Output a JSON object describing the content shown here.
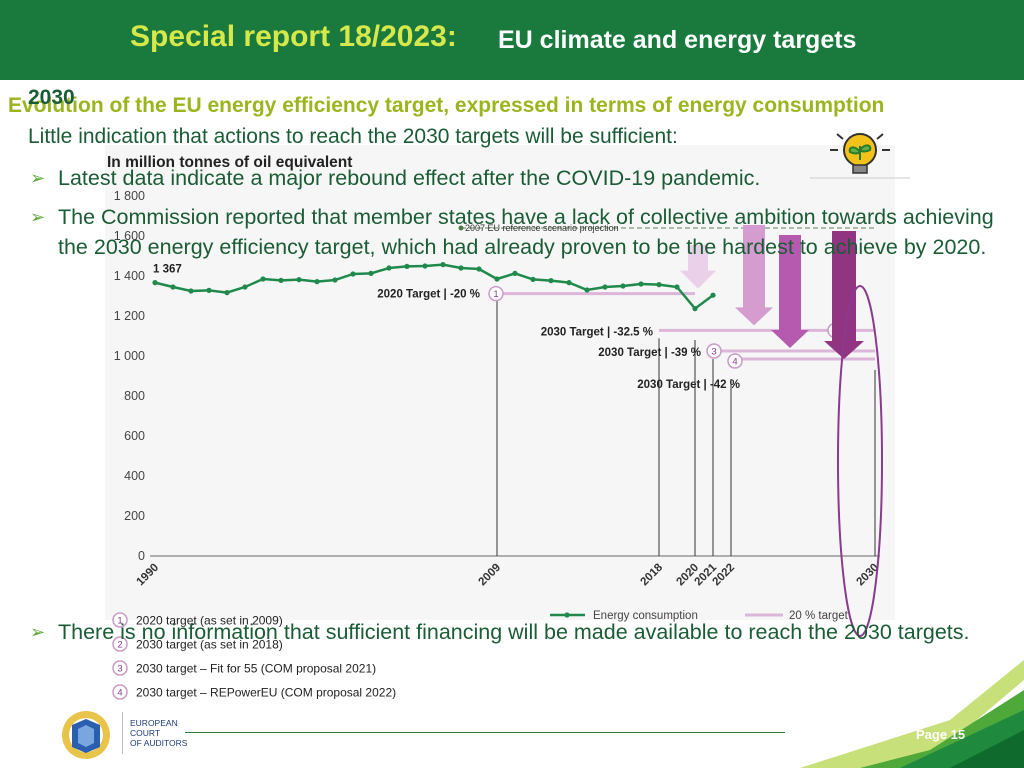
{
  "header": {
    "title_prefix": "Special report 18/2023:",
    "title_main": "EU climate and energy targets"
  },
  "subtitle": "Evolution of the EU energy efficiency target, expressed in terms of energy consumption",
  "year_overlay": "2030",
  "intro": "Little indication that actions to reach the 2030 targets will be sufficient:",
  "bullets": [
    "Latest data indicate a major rebound effect after the COVID-19 pandemic.",
    "The Commission reported that member states have a lack of collective ambition towards achieving the 2030 energy efficiency target, which had already proven to be the hardest to achieve by 2020.",
    "There is no information that sufficient financing will be made available to reach the 2030 targets."
  ],
  "chart_data": {
    "type": "line",
    "title": "In million tonnes of oil equivalent",
    "x": [
      1990,
      1991,
      1992,
      1993,
      1994,
      1995,
      1996,
      1997,
      1998,
      1999,
      2000,
      2001,
      2002,
      2003,
      2004,
      2005,
      2006,
      2007,
      2008,
      2009,
      2010,
      2011,
      2012,
      2013,
      2014,
      2015,
      2016,
      2017,
      2018,
      2019,
      2020,
      2021
    ],
    "series": [
      {
        "name": "Energy consumption",
        "values": [
          1367,
          1345,
          1325,
          1328,
          1317,
          1345,
          1385,
          1378,
          1382,
          1372,
          1380,
          1410,
          1413,
          1440,
          1448,
          1450,
          1457,
          1440,
          1435,
          1385,
          1413,
          1383,
          1377,
          1367,
          1330,
          1345,
          1350,
          1360,
          1357,
          1345,
          1237,
          1304
        ]
      }
    ],
    "first_value_label": "1 367",
    "reference_line": {
      "label": "2007 EU reference scenario projection",
      "from": 2007,
      "to": 2030,
      "start": 1640,
      "end": 1640
    },
    "targets": [
      {
        "num": "1",
        "label": "2020 Target",
        "sep": "|",
        "pct": "-20 %",
        "year": 2020,
        "value": 1312,
        "from_year": 2009
      },
      {
        "num": "2",
        "label": "2030 Target",
        "sep": "|",
        "pct": "-32.5 %",
        "year": 2030,
        "value": 1128,
        "from_year": 2018
      },
      {
        "num": "3",
        "label": "2030 Target",
        "sep": "|",
        "pct": "-39 %",
        "year": 2030,
        "value": 1025,
        "from_year": 2021
      },
      {
        "num": "4",
        "label": "2030 Target",
        "sep": "|",
        "pct": "-42 %",
        "year": 2030,
        "value": 985,
        "from_year": 2022
      }
    ],
    "yticks": [
      "0",
      "200",
      "400",
      "600",
      "800",
      "1 000",
      "1 200",
      "1 400",
      "1 600",
      "1 800"
    ],
    "ytick_values": [
      0,
      200,
      400,
      600,
      800,
      1000,
      1200,
      1400,
      1600,
      1800
    ],
    "xticks": [
      "1990",
      "2009",
      "2018",
      "2020",
      "2021",
      "2022",
      "2030"
    ],
    "xtick_values": [
      1990,
      2009,
      2018,
      2020,
      2021,
      2022,
      2030
    ],
    "ylim": [
      0,
      1900
    ],
    "xlim": [
      1990,
      2030
    ],
    "legend": {
      "line_items": [
        "Energy consumption",
        "20 % target"
      ],
      "numbered_items": [
        {
          "num": "1",
          "text": "2020 target (as set in 2009)"
        },
        {
          "num": "2",
          "text": "2030 target (as set in 2018)"
        },
        {
          "num": "3",
          "text": "2030 target – Fit for 55 (COM proposal 2021)"
        },
        {
          "num": "4",
          "text": "2030 target – REPowerEU (COM proposal 2022)"
        }
      ]
    },
    "colors": {
      "line": "#1f8a4c",
      "target_light": "#dcb6d8",
      "arrow_colors": [
        "#ead0e8",
        "#d49ccf",
        "#b65aaf",
        "#913583"
      ],
      "ellipse": "#8a3a8f"
    }
  },
  "footer": {
    "org_line1": "EUROPEAN",
    "org_line2": "COURT",
    "org_line3": "OF AUDITORS",
    "page": "Page 15"
  }
}
